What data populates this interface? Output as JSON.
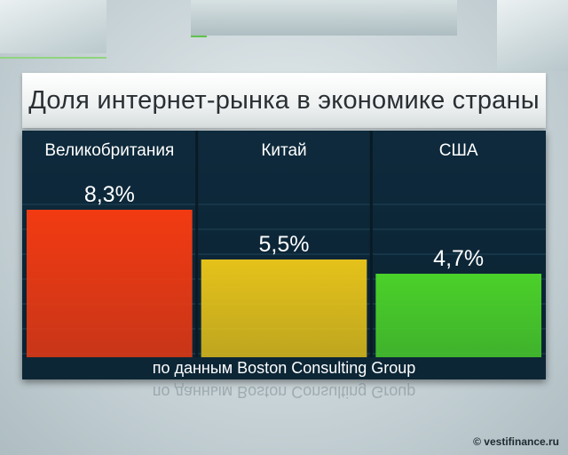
{
  "title": "Доля интернет-рынка в экономике страны",
  "source_note": "по данным Boston Consulting Group",
  "credit": "© vestifinance.ru",
  "colors": {
    "panel": "#0e2a3c",
    "bar_uk": "#f23a12",
    "bar_china": "#e5c21a",
    "bar_usa": "#4bd12a"
  },
  "chart_data": {
    "type": "bar",
    "title": "Доля интернет-рынка в экономике страны",
    "categories": [
      "Великобритания",
      "Китай",
      "США"
    ],
    "values": [
      8.3,
      5.5,
      4.7
    ],
    "value_labels": [
      "8,3%",
      "5,5%",
      "4,7%"
    ],
    "unit": "%",
    "ylim": [
      0,
      10
    ],
    "grid": true,
    "legend": "none"
  }
}
